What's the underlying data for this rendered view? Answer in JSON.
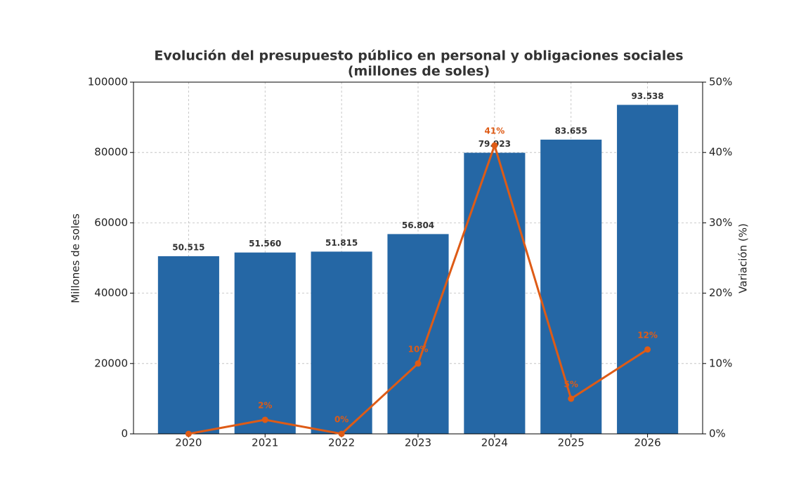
{
  "chart_data": {
    "type": "bar_line",
    "title": [
      "Evolución del presupuesto público en personal y obligaciones sociales",
      "(millones de soles)"
    ],
    "y_label": "Millones de soles",
    "y2_label": "Variación (%)",
    "categories": [
      "2020",
      "2021",
      "2022",
      "2023",
      "2024",
      "2025",
      "2026"
    ],
    "series": [
      {
        "type": "bar",
        "color": "#2567a5",
        "values": [
          50515,
          51560,
          51815,
          56804,
          79923,
          83655,
          93538
        ],
        "value_labels": [
          "50.515",
          "51.560",
          "51.815",
          "56.804",
          "79.923",
          "83.655",
          "93.538"
        ]
      },
      {
        "type": "line",
        "axis": "y2",
        "color": "#de5b16",
        "values": [
          0,
          2,
          0,
          10,
          41,
          5,
          12
        ],
        "value_labels": [
          null,
          "2%",
          "0%",
          "10%",
          "41%",
          "5%",
          "12%"
        ]
      }
    ],
    "ylim": [
      0,
      100000
    ],
    "yticks": [
      0,
      20000,
      40000,
      60000,
      80000,
      100000
    ],
    "y2lim": [
      0,
      50
    ],
    "y2ticks": [
      {
        "value": 0,
        "label": "0%"
      },
      {
        "value": 10,
        "label": "10%"
      },
      {
        "value": 20,
        "label": "20%"
      },
      {
        "value": 30,
        "label": "30%"
      },
      {
        "value": 40,
        "label": "40%"
      },
      {
        "value": 50,
        "label": "50%"
      }
    ],
    "grid": true
  }
}
